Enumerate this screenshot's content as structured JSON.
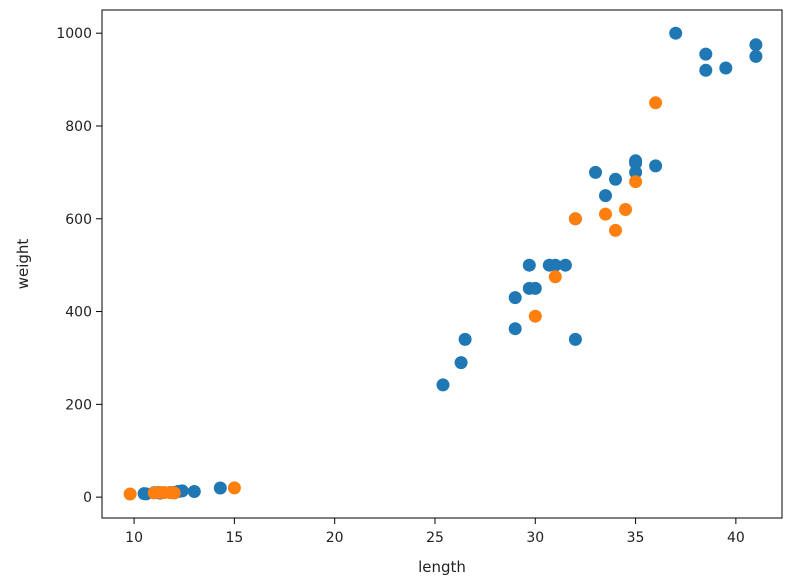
{
  "chart_data": {
    "type": "scatter",
    "title": "",
    "xlabel": "length",
    "ylabel": "weight",
    "xlim": [
      8.4,
      42.3
    ],
    "ylim": [
      -45,
      1050
    ],
    "xticks": [
      10,
      15,
      20,
      25,
      30,
      35,
      40
    ],
    "yticks": [
      0,
      200,
      400,
      600,
      800,
      1000
    ],
    "grid": false,
    "series": [
      {
        "color": "#1f77b4",
        "points": [
          [
            10.5,
            7.5
          ],
          [
            10.6,
            7.0
          ],
          [
            11.0,
            9.7
          ],
          [
            11.2,
            9.8
          ],
          [
            11.3,
            8.7
          ],
          [
            11.8,
            10.0
          ],
          [
            12.0,
            9.9
          ],
          [
            12.2,
            12.2
          ],
          [
            12.4,
            13.4
          ],
          [
            13.0,
            12.2
          ],
          [
            14.3,
            19.7
          ],
          [
            25.4,
            242
          ],
          [
            26.3,
            290
          ],
          [
            26.5,
            340
          ],
          [
            29.0,
            363
          ],
          [
            29.0,
            430
          ],
          [
            29.7,
            450
          ],
          [
            29.7,
            500
          ],
          [
            30.0,
            450
          ],
          [
            30.7,
            500
          ],
          [
            31.0,
            500
          ],
          [
            31.5,
            500
          ],
          [
            32.0,
            340
          ],
          [
            32.0,
            600
          ],
          [
            33.0,
            700
          ],
          [
            33.5,
            650
          ],
          [
            34.0,
            685
          ],
          [
            35.0,
            725
          ],
          [
            35.0,
            720
          ],
          [
            35.0,
            700
          ],
          [
            36.0,
            714
          ],
          [
            37.0,
            1000
          ],
          [
            38.5,
            955
          ],
          [
            38.5,
            920
          ],
          [
            39.5,
            925
          ],
          [
            41.0,
            975
          ],
          [
            41.0,
            950
          ]
        ]
      },
      {
        "color": "#ff7f0e",
        "points": [
          [
            9.8,
            6.7
          ],
          [
            11.0,
            9.0
          ],
          [
            11.3,
            10.0
          ],
          [
            11.5,
            9.9
          ],
          [
            11.8,
            9.8
          ],
          [
            12.0,
            8.9
          ],
          [
            15.0,
            19.9
          ],
          [
            30.0,
            390
          ],
          [
            31.0,
            475
          ],
          [
            32.0,
            600
          ],
          [
            33.5,
            610
          ],
          [
            34.0,
            575
          ],
          [
            34.5,
            620
          ],
          [
            35.0,
            680
          ],
          [
            36.0,
            850
          ]
        ]
      }
    ]
  }
}
